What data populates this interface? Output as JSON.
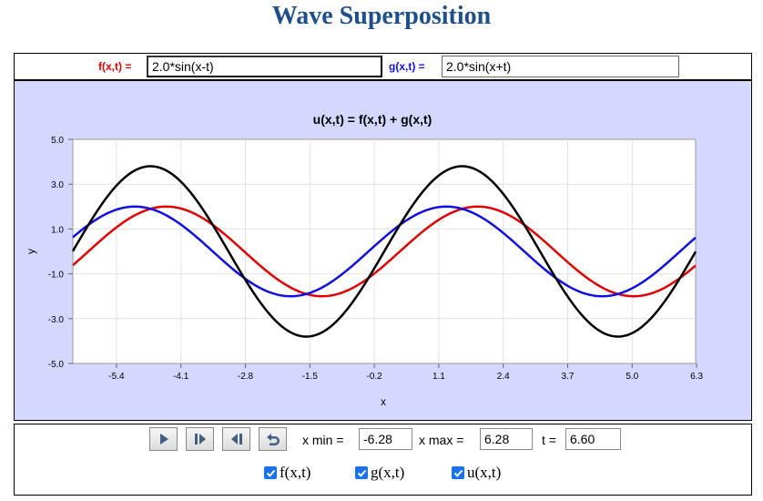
{
  "page": {
    "title": "Wave Superposition"
  },
  "functions": {
    "f_label": "f(x,t) =",
    "f_value": "2.0*sin(x-t)",
    "g_label": "g(x,t) =",
    "g_value": "2.0*sin(x+t)"
  },
  "colors": {
    "f": "#e00000",
    "g": "#1010e0",
    "u": "#000000",
    "panel": "#d4d8ff",
    "title": "#1e4f8c"
  },
  "chart_data": {
    "type": "line",
    "title": "u(x,t) = f(x,t) + g(x,t)",
    "xlabel": "x",
    "ylabel": "y",
    "xlim": [
      -6.28,
      6.28
    ],
    "ylim": [
      -5.0,
      5.0
    ],
    "xticks": [
      "-5.4",
      "-4.1",
      "-2.8",
      "-1.5",
      "-0.2",
      "1.1",
      "2.4",
      "3.7",
      "5.0",
      "6.3"
    ],
    "yticks": [
      "5.0",
      "3.0",
      "1.0",
      "-1.0",
      "-3.0",
      "-5.0"
    ],
    "grid": true,
    "t": 6.6,
    "series": [
      {
        "name": "f(x,t)",
        "formula": "2.0*sin(x-t)",
        "color": "#e00000"
      },
      {
        "name": "g(x,t)",
        "formula": "2.0*sin(x+t)",
        "color": "#1010e0"
      },
      {
        "name": "u(x,t)",
        "formula": "f(x,t) + g(x,t)",
        "color": "#000000"
      }
    ]
  },
  "controls": {
    "buttons": [
      {
        "name": "play-button",
        "icon": "play-icon"
      },
      {
        "name": "step-forward-button",
        "icon": "step-forward-icon"
      },
      {
        "name": "step-back-button",
        "icon": "step-back-icon"
      },
      {
        "name": "reset-button",
        "icon": "reset-icon"
      }
    ],
    "xmin_label": "x min =",
    "xmin_value": "-6.28",
    "xmax_label": "x max =",
    "xmax_value": "6.28",
    "t_label": "t =",
    "t_value": "6.60",
    "checkboxes": [
      {
        "label": "f(x,t)",
        "checked": true
      },
      {
        "label": "g(x,t)",
        "checked": true
      },
      {
        "label": "u(x,t)",
        "checked": true
      }
    ]
  }
}
